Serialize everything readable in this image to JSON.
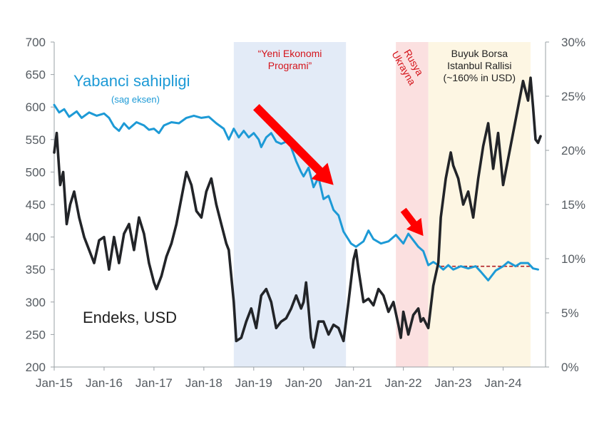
{
  "chart_data": {
    "type": "line",
    "title": "",
    "x_ticks": [
      "Jan-15",
      "Jan-16",
      "Jan-17",
      "Jan-18",
      "Jan-19",
      "Jan-20",
      "Jan-21",
      "Jan-22",
      "Jan-23",
      "Jan-24"
    ],
    "x_range": [
      2015.0,
      2024.85
    ],
    "y_left": {
      "range": [
        200,
        700
      ],
      "ticks": [
        "200",
        "250",
        "300",
        "350",
        "400",
        "450",
        "500",
        "550",
        "600",
        "650",
        "700"
      ]
    },
    "y_right": {
      "range": [
        0,
        30
      ],
      "ticks": [
        "0%",
        "5%",
        "10%",
        "15%",
        "20%",
        "25%",
        "30%"
      ]
    },
    "bands": [
      {
        "name": "yeni-ekonomi",
        "x0": 2018.6,
        "x1": 2020.85,
        "color": "#e3ebf7",
        "label_lines": [
          "“Yeni Ekonomi",
          "Programi”"
        ],
        "label_color": "#d4141b"
      },
      {
        "name": "rusya-ukrayna",
        "x0": 2021.85,
        "x1": 2022.5,
        "color": "#fbe0e0",
        "label_lines": [
          "Rusya",
          "Ukrayna"
        ],
        "label_color": "#d4141b"
      },
      {
        "name": "borsa-rallisi",
        "x0": 2022.5,
        "x1": 2024.55,
        "color": "#fdf6e3",
        "label_lines": [
          "Buyuk Borsa",
          "Istanbul Rallisi",
          "(~160% in USD)"
        ],
        "label_color": "#222222"
      }
    ],
    "series": [
      {
        "name": "Yabanci sahipligi",
        "subtitle": "(sag eksen)",
        "axis": "right",
        "color": "#1d9ad6",
        "points": [
          [
            2015.0,
            24.2
          ],
          [
            2015.1,
            23.5
          ],
          [
            2015.2,
            23.8
          ],
          [
            2015.3,
            23.1
          ],
          [
            2015.45,
            23.6
          ],
          [
            2015.55,
            23.0
          ],
          [
            2015.7,
            23.5
          ],
          [
            2015.85,
            23.2
          ],
          [
            2016.0,
            23.4
          ],
          [
            2016.1,
            23.0
          ],
          [
            2016.2,
            22.2
          ],
          [
            2016.3,
            21.8
          ],
          [
            2016.4,
            22.5
          ],
          [
            2016.5,
            22.0
          ],
          [
            2016.65,
            22.6
          ],
          [
            2016.8,
            22.3
          ],
          [
            2016.9,
            21.9
          ],
          [
            2017.0,
            22.0
          ],
          [
            2017.1,
            21.6
          ],
          [
            2017.2,
            22.3
          ],
          [
            2017.35,
            22.6
          ],
          [
            2017.5,
            22.5
          ],
          [
            2017.65,
            23.0
          ],
          [
            2017.8,
            23.2
          ],
          [
            2017.95,
            23.0
          ],
          [
            2018.1,
            23.1
          ],
          [
            2018.25,
            22.5
          ],
          [
            2018.4,
            22.0
          ],
          [
            2018.5,
            21.0
          ],
          [
            2018.6,
            22.0
          ],
          [
            2018.7,
            21.2
          ],
          [
            2018.8,
            21.8
          ],
          [
            2018.9,
            21.2
          ],
          [
            2019.0,
            21.6
          ],
          [
            2019.1,
            21.0
          ],
          [
            2019.15,
            20.3
          ],
          [
            2019.25,
            21.2
          ],
          [
            2019.35,
            21.6
          ],
          [
            2019.45,
            20.8
          ],
          [
            2019.55,
            20.6
          ],
          [
            2019.7,
            20.9
          ],
          [
            2019.85,
            19.0
          ],
          [
            2019.95,
            18.0
          ],
          [
            2020.0,
            17.6
          ],
          [
            2020.1,
            18.4
          ],
          [
            2020.2,
            16.6
          ],
          [
            2020.3,
            17.5
          ],
          [
            2020.4,
            15.5
          ],
          [
            2020.5,
            15.8
          ],
          [
            2020.6,
            14.5
          ],
          [
            2020.7,
            14.0
          ],
          [
            2020.8,
            12.5
          ],
          [
            2020.95,
            11.4
          ],
          [
            2021.05,
            11.1
          ],
          [
            2021.2,
            11.6
          ],
          [
            2021.3,
            12.6
          ],
          [
            2021.4,
            11.8
          ],
          [
            2021.55,
            11.4
          ],
          [
            2021.7,
            11.6
          ],
          [
            2021.85,
            12.2
          ],
          [
            2022.0,
            11.4
          ],
          [
            2022.1,
            12.3
          ],
          [
            2022.2,
            11.7
          ],
          [
            2022.3,
            11.1
          ],
          [
            2022.4,
            10.7
          ],
          [
            2022.5,
            9.4
          ],
          [
            2022.6,
            9.7
          ],
          [
            2022.7,
            9.4
          ],
          [
            2022.8,
            9.0
          ],
          [
            2022.9,
            9.4
          ],
          [
            2023.0,
            9.0
          ],
          [
            2023.15,
            9.3
          ],
          [
            2023.3,
            9.1
          ],
          [
            2023.45,
            9.3
          ],
          [
            2023.55,
            8.8
          ],
          [
            2023.7,
            8.0
          ],
          [
            2023.85,
            8.9
          ],
          [
            2024.0,
            9.3
          ],
          [
            2024.1,
            9.7
          ],
          [
            2024.25,
            9.3
          ],
          [
            2024.35,
            9.6
          ],
          [
            2024.5,
            9.6
          ],
          [
            2024.6,
            9.1
          ],
          [
            2024.7,
            9.0
          ]
        ]
      },
      {
        "name": "Endeks, USD",
        "axis": "left",
        "color": "#222428",
        "points": [
          [
            2015.0,
            530
          ],
          [
            2015.05,
            560
          ],
          [
            2015.12,
            480
          ],
          [
            2015.18,
            500
          ],
          [
            2015.25,
            420
          ],
          [
            2015.32,
            450
          ],
          [
            2015.4,
            470
          ],
          [
            2015.5,
            430
          ],
          [
            2015.6,
            400
          ],
          [
            2015.7,
            380
          ],
          [
            2015.8,
            360
          ],
          [
            2015.9,
            395
          ],
          [
            2016.0,
            400
          ],
          [
            2016.1,
            350
          ],
          [
            2016.2,
            400
          ],
          [
            2016.3,
            360
          ],
          [
            2016.4,
            405
          ],
          [
            2016.5,
            420
          ],
          [
            2016.6,
            380
          ],
          [
            2016.7,
            430
          ],
          [
            2016.8,
            405
          ],
          [
            2016.9,
            360
          ],
          [
            2017.0,
            330
          ],
          [
            2017.05,
            320
          ],
          [
            2017.15,
            340
          ],
          [
            2017.25,
            370
          ],
          [
            2017.35,
            390
          ],
          [
            2017.45,
            420
          ],
          [
            2017.55,
            460
          ],
          [
            2017.65,
            500
          ],
          [
            2017.75,
            480
          ],
          [
            2017.85,
            440
          ],
          [
            2017.95,
            430
          ],
          [
            2018.05,
            470
          ],
          [
            2018.15,
            490
          ],
          [
            2018.25,
            450
          ],
          [
            2018.35,
            420
          ],
          [
            2018.45,
            390
          ],
          [
            2018.5,
            380
          ],
          [
            2018.6,
            300
          ],
          [
            2018.65,
            240
          ],
          [
            2018.75,
            245
          ],
          [
            2018.85,
            270
          ],
          [
            2018.95,
            290
          ],
          [
            2019.05,
            260
          ],
          [
            2019.15,
            310
          ],
          [
            2019.25,
            320
          ],
          [
            2019.35,
            300
          ],
          [
            2019.45,
            260
          ],
          [
            2019.55,
            270
          ],
          [
            2019.65,
            275
          ],
          [
            2019.75,
            290
          ],
          [
            2019.85,
            310
          ],
          [
            2019.95,
            290
          ],
          [
            2020.0,
            300
          ],
          [
            2020.05,
            330
          ],
          [
            2020.1,
            290
          ],
          [
            2020.15,
            245
          ],
          [
            2020.2,
            230
          ],
          [
            2020.3,
            270
          ],
          [
            2020.4,
            270
          ],
          [
            2020.5,
            250
          ],
          [
            2020.6,
            265
          ],
          [
            2020.7,
            260
          ],
          [
            2020.8,
            240
          ],
          [
            2020.9,
            300
          ],
          [
            2021.0,
            365
          ],
          [
            2021.05,
            380
          ],
          [
            2021.1,
            350
          ],
          [
            2021.2,
            300
          ],
          [
            2021.3,
            305
          ],
          [
            2021.4,
            295
          ],
          [
            2021.5,
            320
          ],
          [
            2021.6,
            310
          ],
          [
            2021.7,
            285
          ],
          [
            2021.8,
            300
          ],
          [
            2021.9,
            265
          ],
          [
            2021.95,
            245
          ],
          [
            2022.0,
            285
          ],
          [
            2022.1,
            250
          ],
          [
            2022.2,
            280
          ],
          [
            2022.3,
            290
          ],
          [
            2022.35,
            270
          ],
          [
            2022.4,
            275
          ],
          [
            2022.5,
            260
          ],
          [
            2022.6,
            325
          ],
          [
            2022.7,
            360
          ],
          [
            2022.75,
            430
          ],
          [
            2022.85,
            490
          ],
          [
            2022.95,
            530
          ],
          [
            2023.0,
            510
          ],
          [
            2023.1,
            490
          ],
          [
            2023.2,
            450
          ],
          [
            2023.3,
            470
          ],
          [
            2023.4,
            430
          ],
          [
            2023.5,
            490
          ],
          [
            2023.6,
            540
          ],
          [
            2023.7,
            575
          ],
          [
            2023.8,
            505
          ],
          [
            2023.9,
            560
          ],
          [
            2024.0,
            480
          ],
          [
            2024.1,
            520
          ],
          [
            2024.2,
            560
          ],
          [
            2024.3,
            600
          ],
          [
            2024.4,
            640
          ],
          [
            2024.5,
            610
          ],
          [
            2024.55,
            645
          ],
          [
            2024.6,
            600
          ],
          [
            2024.65,
            550
          ],
          [
            2024.7,
            545
          ],
          [
            2024.75,
            555
          ]
        ]
      }
    ],
    "reference_line": {
      "axis": "right",
      "y": 9.3,
      "x0": 2022.75,
      "x1": 2024.55,
      "color": "#b01d24",
      "style": "dashed"
    },
    "arrows": [
      {
        "x0": 2019.05,
        "y0": 24.0,
        "x1": 2020.6,
        "y1": 16.8,
        "color": "#ff0000",
        "axis": "right"
      },
      {
        "x0": 2022.0,
        "y0": 14.5,
        "x1": 2022.4,
        "y1": 12.1,
        "color": "#ff0000",
        "axis": "right"
      }
    ],
    "legend": "inline-labels",
    "grid": false
  }
}
